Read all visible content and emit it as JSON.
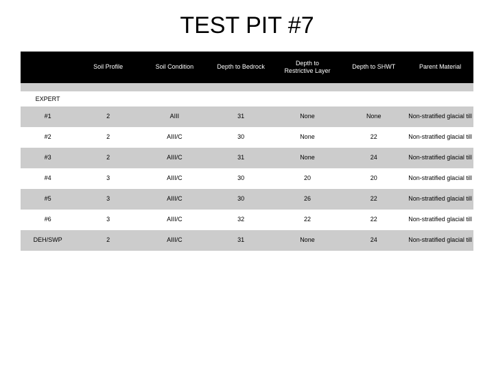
{
  "title": "TEST PIT #7",
  "columns": [
    "Soil Profile",
    "Soil Condition",
    "Depth to Bedrock",
    "Depth to\nRestrictive Layer",
    "Depth to SHWT",
    "Parent Material"
  ],
  "expert_label": "EXPERT",
  "rows": [
    {
      "label": "#1",
      "cells": [
        "2",
        "AIII",
        "31",
        "None",
        "None",
        "Non-stratified glacial till"
      ]
    },
    {
      "label": "#2",
      "cells": [
        "2",
        "AIII/C",
        "30",
        "None",
        "22",
        "Non-stratified glacial till"
      ]
    },
    {
      "label": "#3",
      "cells": [
        "2",
        "AIII/C",
        "31",
        "None",
        "24",
        "Non-stratified glacial till"
      ]
    },
    {
      "label": "#4",
      "cells": [
        "3",
        "AIII/C",
        "30",
        "20",
        "20",
        "Non-stratified glacial till"
      ]
    },
    {
      "label": "#5",
      "cells": [
        "3",
        "AIII/C",
        "30",
        "26",
        "22",
        "Non-stratified glacial till"
      ]
    },
    {
      "label": "#6",
      "cells": [
        "3",
        "AIII/C",
        "32",
        "22",
        "22",
        "Non-stratified glacial till"
      ]
    },
    {
      "label": "DEH/SWP",
      "cells": [
        "2",
        "AIII/C",
        "31",
        "None",
        "24",
        "Non-stratified glacial till"
      ]
    }
  ],
  "colors": {
    "header_bg": "#000000",
    "header_fg": "#ffffff",
    "shade_bg": "#cccccc",
    "white_bg": "#ffffff"
  }
}
